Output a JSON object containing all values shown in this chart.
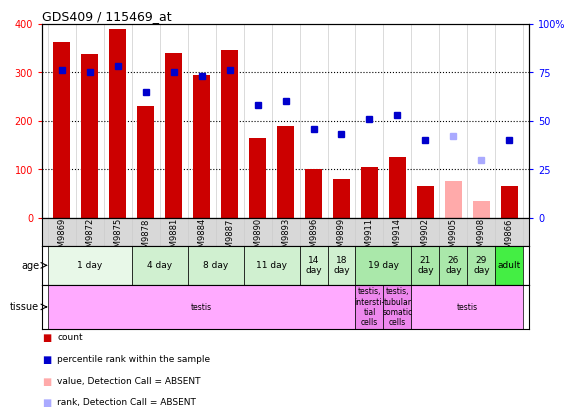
{
  "title": "GDS409 / 115469_at",
  "samples": [
    "GSM9869",
    "GSM9872",
    "GSM9875",
    "GSM9878",
    "GSM9881",
    "GSM9884",
    "GSM9887",
    "GSM9890",
    "GSM9893",
    "GSM9896",
    "GSM9899",
    "GSM9911",
    "GSM9914",
    "GSM9902",
    "GSM9905",
    "GSM9908",
    "GSM9866"
  ],
  "count_values": [
    362,
    337,
    390,
    230,
    340,
    295,
    345,
    165,
    190,
    100,
    80,
    105,
    125,
    65,
    75,
    35,
    65
  ],
  "count_absent": [
    false,
    false,
    false,
    false,
    false,
    false,
    false,
    false,
    false,
    false,
    false,
    false,
    false,
    false,
    true,
    true,
    false
  ],
  "percentile_values": [
    76,
    75,
    78,
    65,
    75,
    73,
    76,
    58,
    60,
    46,
    43,
    51,
    53,
    40,
    42,
    30,
    40
  ],
  "percentile_absent": [
    false,
    false,
    false,
    false,
    false,
    false,
    false,
    false,
    false,
    false,
    false,
    false,
    false,
    false,
    true,
    true,
    false
  ],
  "bar_color_present": "#cc0000",
  "bar_color_absent": "#ffaaaa",
  "dot_color_present": "#0000cc",
  "dot_color_absent": "#aaaaff",
  "age_groups": [
    {
      "label": "1 day",
      "start": 0,
      "end": 3,
      "color": "#e8f8e8"
    },
    {
      "label": "4 day",
      "start": 3,
      "end": 5,
      "color": "#d0f0d0"
    },
    {
      "label": "8 day",
      "start": 5,
      "end": 7,
      "color": "#d0f0d0"
    },
    {
      "label": "11 day",
      "start": 7,
      "end": 9,
      "color": "#d0f0d0"
    },
    {
      "label": "14\nday",
      "start": 9,
      "end": 10,
      "color": "#d0f0d0"
    },
    {
      "label": "18\nday",
      "start": 10,
      "end": 11,
      "color": "#d0f0d0"
    },
    {
      "label": "19 day",
      "start": 11,
      "end": 13,
      "color": "#aae8aa"
    },
    {
      "label": "21\nday",
      "start": 13,
      "end": 14,
      "color": "#aae8aa"
    },
    {
      "label": "26\nday",
      "start": 14,
      "end": 15,
      "color": "#aae8aa"
    },
    {
      "label": "29\nday",
      "start": 15,
      "end": 16,
      "color": "#aae8aa"
    },
    {
      "label": "adult",
      "start": 16,
      "end": 17,
      "color": "#44ee44"
    }
  ],
  "tissue_groups": [
    {
      "label": "testis",
      "start": 0,
      "end": 11,
      "color": "#ffaaff"
    },
    {
      "label": "testis,\nintersti-\ntial\ncells",
      "start": 11,
      "end": 12,
      "color": "#ee88ee"
    },
    {
      "label": "testis,\ntubular\nsomatic\ncells",
      "start": 12,
      "end": 13,
      "color": "#ee88ee"
    },
    {
      "label": "testis",
      "start": 13,
      "end": 17,
      "color": "#ffaaff"
    }
  ],
  "ylim_left": [
    0,
    400
  ],
  "ylim_right": [
    0,
    100
  ],
  "yticks_left": [
    0,
    100,
    200,
    300,
    400
  ],
  "yticks_right": [
    0,
    25,
    50,
    75,
    100
  ],
  "ytick_labels_right": [
    "0",
    "25",
    "50",
    "75",
    "100%"
  ],
  "background_color": "#ffffff"
}
